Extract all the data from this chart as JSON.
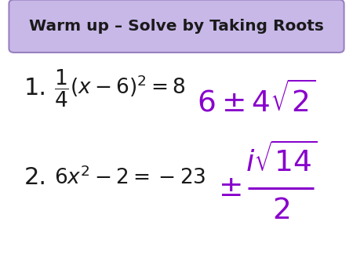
{
  "title": "Warm up – Solve by Taking Roots",
  "title_bg": "#c8b8e8",
  "title_border": "#9980c0",
  "background": "#ffffff",
  "black": "#1a1a1a",
  "purple": "#8800cc",
  "figsize": [
    4.5,
    3.38
  ],
  "dpi": 100
}
